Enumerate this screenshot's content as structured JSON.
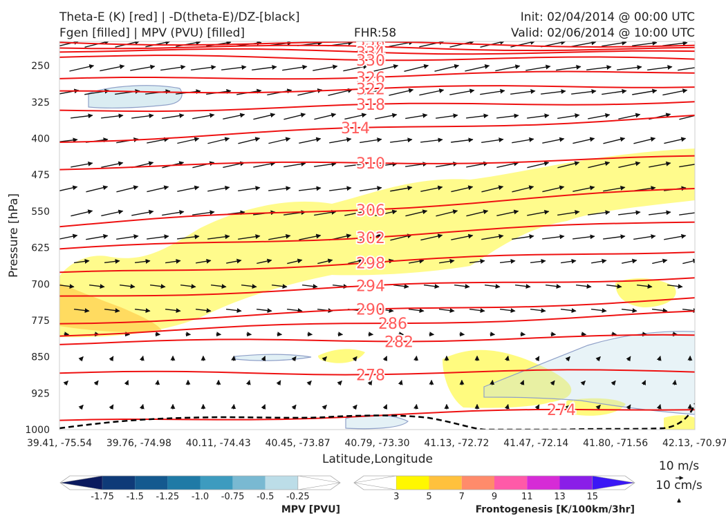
{
  "header": {
    "title_line1": "Theta-E (K) [red] | -D(theta-E)/DZ-[black]",
    "title_line2": "Fgen [filled] | MPV (PVU) [filled]",
    "fhr": "FHR:58",
    "init": "Init: 02/04/2014 @ 00:00 UTC",
    "valid": "Valid: 02/06/2014 @ 10:00 UTC"
  },
  "chart_data": {
    "type": "cross-section",
    "ylabel": "Pressure [hPa]",
    "xlabel": "Latitude,Longitude",
    "y_ticks": [
      250,
      325,
      400,
      475,
      550,
      625,
      700,
      775,
      850,
      925,
      1000
    ],
    "ylim": [
      1000,
      200
    ],
    "x_ticks": [
      "39.41, -75.54",
      "39.76, -74.98",
      "40.11, -74.43",
      "40.45, -73.87",
      "40.79, -73.30",
      "41.13, -72.72",
      "41.47, -72.14",
      "41.80, -71.56",
      "42.13, -70.97"
    ],
    "theta_e_contours": [
      {
        "value": 342,
        "label": "342",
        "p_left": 202,
        "p_right": 208
      },
      {
        "value": 338,
        "label": "338",
        "p_left": 210,
        "p_right": 216
      },
      {
        "value": 334,
        "label": "334",
        "p_left": 218,
        "p_right": 224
      },
      {
        "value": 330,
        "label": "330",
        "p_left": 232,
        "p_right": 237
      },
      {
        "value": 326,
        "label": "326",
        "p_left": 280,
        "p_right": 262
      },
      {
        "value": 322,
        "label": "322",
        "p_left": 306,
        "p_right": 290
      },
      {
        "value": 318,
        "label": "318",
        "p_left": 343,
        "p_right": 323
      },
      {
        "value": 314,
        "label": "314",
        "p_left": 405,
        "p_right": 355
      },
      {
        "value": 310,
        "label": "310",
        "p_left": 460,
        "p_right": 440
      },
      {
        "value": 306,
        "label": "306",
        "p_left": 580,
        "p_right": 505
      },
      {
        "value": 302,
        "label": "302",
        "p_left": 630,
        "p_right": 570
      },
      {
        "value": 298,
        "label": "298",
        "p_left": 680,
        "p_right": 630
      },
      {
        "value": 294,
        "label": "294",
        "p_left": 727,
        "p_right": 685
      },
      {
        "value": 290,
        "label": "290",
        "p_left": 780,
        "p_right": 730
      },
      {
        "value": 286,
        "label": "286",
        "p_left": 803,
        "p_right": 760
      },
      {
        "value": 282,
        "label": "282",
        "p_left": 822,
        "p_right": 808
      },
      {
        "value": 278,
        "label": "278",
        "p_left": 885,
        "p_right": 880
      },
      {
        "value": 274,
        "label": "274",
        "p_left": 985,
        "p_right": 955
      }
    ],
    "mpv_colorbar": {
      "title": "MPV [PVU]",
      "ticks": [
        "-1.75",
        "-1.5",
        "-1.25",
        "-1.0",
        "-0.75",
        "-0.5",
        "-0.25"
      ],
      "colors": [
        "#0b1a5e",
        "#0f3a78",
        "#14598f",
        "#1f7aa6",
        "#3d9bbf",
        "#79b9d2",
        "#bcdde8",
        "#ffffff"
      ]
    },
    "fgen_colorbar": {
      "title": "Frontogenesis [K/100km/3hr]",
      "ticks": [
        "3",
        "5",
        "7",
        "9",
        "11",
        "13",
        "15"
      ],
      "colors": [
        "#ffffff",
        "#fff700",
        "#ffc13d",
        "#ff8b6b",
        "#ff5aa8",
        "#d62bd6",
        "#8a1ee8",
        "#3a17f5"
      ]
    },
    "reference_vectors": {
      "horizontal": "10 m/s",
      "vertical": "10 cm/s"
    }
  }
}
